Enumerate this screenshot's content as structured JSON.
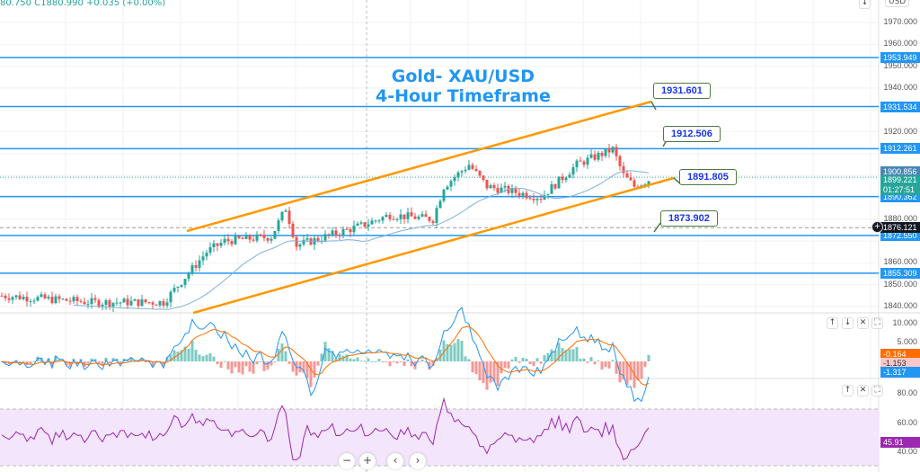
{
  "header": {
    "ohlc_text": "80.750  C1880.990  +0.035 (+0.00%)",
    "currency": "USD"
  },
  "title": {
    "line1": "Gold- XAU/USD",
    "line2": "4-Hour Timeframe"
  },
  "price_axis": {
    "ticks": [
      "1970.000",
      "1960.000",
      "1950.000",
      "1940.000",
      "1920.000",
      "1880.000",
      "1860.000",
      "1850.000",
      "1840.000"
    ],
    "tick_values": [
      1970,
      1960,
      1950,
      1940,
      1920,
      1880,
      1860,
      1850,
      1840
    ]
  },
  "levels": [
    {
      "label": "1953.949",
      "price": 1953.949
    },
    {
      "label": "1931.534",
      "price": 1931.534
    },
    {
      "label": "1912.261",
      "price": 1912.261
    },
    {
      "label": "1890.362",
      "price": 1890.362
    },
    {
      "label": "1872.550",
      "price": 1872.55
    },
    {
      "label": "1855.309",
      "price": 1855.309
    }
  ],
  "price_tags": {
    "ma": {
      "label": "1900.856",
      "price": 1900.856,
      "color": "#4a86b5"
    },
    "last": {
      "label": "1899.221",
      "countdown": "01:27:51",
      "price": 1899.221,
      "color": "#26a69a"
    },
    "crosshair": {
      "label": "1876.121",
      "price": 1876.121
    }
  },
  "callouts": [
    {
      "label": "1931.601"
    },
    {
      "label": "1912.506"
    },
    {
      "label": "1891.805"
    },
    {
      "label": "1873.902"
    }
  ],
  "colors": {
    "up": "#26a69a",
    "down": "#ef5350",
    "level": "#2196f3",
    "channel": "#ff9800",
    "rsi": "#9c27b0",
    "macd": "#2196f3",
    "signal": "#ff6d00"
  },
  "price_path": [
    [
      0,
      1845
    ],
    [
      25,
      1842
    ],
    [
      45,
      1842
    ],
    [
      57,
      1865
    ],
    [
      62,
      1870
    ],
    [
      75,
      1872
    ],
    [
      79,
      1885
    ],
    [
      82,
      1868
    ],
    [
      100,
      1877
    ],
    [
      108,
      1882
    ],
    [
      120,
      1880
    ],
    [
      123,
      1895
    ],
    [
      130,
      1905
    ],
    [
      135,
      1895
    ],
    [
      150,
      1890
    ],
    [
      160,
      1905
    ],
    [
      170,
      1912
    ],
    [
      173,
      1900
    ],
    [
      176,
      1895
    ],
    [
      180,
      1898
    ]
  ],
  "macd_panel": {
    "ticks": [
      "10.000",
      "5.000"
    ],
    "tags": [
      {
        "label": "-0.164",
        "color": "#ff6d00"
      },
      {
        "label": "-1.153",
        "color": "#f8c8c8"
      },
      {
        "label": "-1.317",
        "color": "#2196f3"
      }
    ]
  },
  "rsi_panel": {
    "ticks": [
      "80.00",
      "60.00",
      "40.00"
    ],
    "value": "45.91"
  },
  "controls": {
    "zoom_out": "−",
    "zoom_in": "+",
    "scroll_left": "‹",
    "scroll_right": "›",
    "up": "↑",
    "down": "↓",
    "close": "✕",
    "maximize": "⛶"
  }
}
